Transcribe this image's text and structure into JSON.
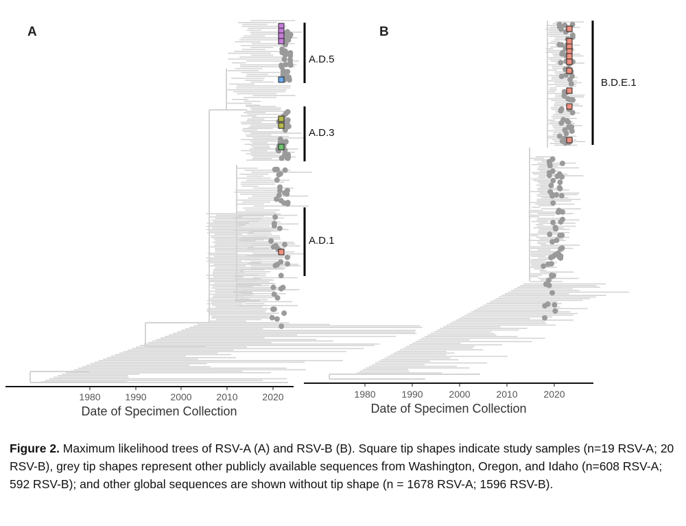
{
  "panels": [
    {
      "letter": "A",
      "axis_title": "Date of Specimen Collection",
      "ticks": [
        "1980",
        "1990",
        "2000",
        "2010",
        "2020"
      ],
      "clades": [
        "A.D.5",
        "A.D.3",
        "A.D.1"
      ],
      "study_tip_colors": [
        "#c77ddb",
        "#6aa8e8",
        "#b5b84a",
        "#6cc46c",
        "#f08f7f"
      ]
    },
    {
      "letter": "B",
      "axis_title": "Date of Specimen Collection",
      "ticks": [
        "1980",
        "1990",
        "2000",
        "2010",
        "2020"
      ],
      "clades": [
        "B.D.E.1"
      ],
      "study_tip_colors": [
        "#f08f7f"
      ]
    }
  ],
  "colors": {
    "branch": "#d4d4d4",
    "tip": "#9a9a9a",
    "axis": "#111111"
  },
  "caption": {
    "label": "Figure 2.",
    "text": " Maximum likelihood trees of RSV-A (A) and RSV-B (B). Square tip shapes indicate study samples (n=19 RSV-A; 20 RSV-B), grey tip shapes represent other publicly available sequences from Washington, Oregon, and Idaho (n=608 RSV-A; 592 RSV-B); and other global sequences are shown without tip shape (n = 1678 RSV-A; 1596 RSV-B)."
  }
}
